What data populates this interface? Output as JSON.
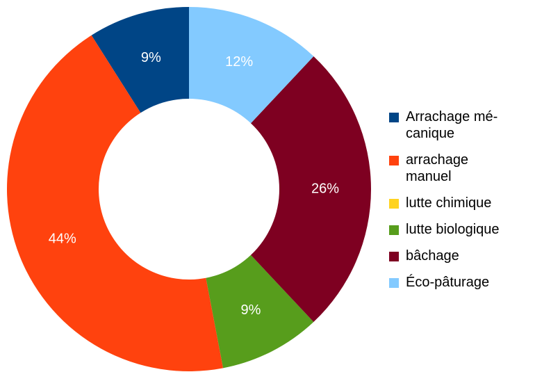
{
  "chart_data": {
    "type": "donut",
    "categories": [
      "Arrachage mé­canique",
      "arrachage manuel",
      "lutte chimique",
      "lutte biologique",
      "bâchage",
      "Éco-pâturage"
    ],
    "values": [
      9,
      44,
      0,
      9,
      26,
      12
    ],
    "value_labels": [
      "9%",
      "44%",
      null,
      "9%",
      "26%",
      "12%"
    ],
    "colors": [
      "#004586",
      "#ff420e",
      "#ffd320",
      "#579d1c",
      "#7e0021",
      "#83caff"
    ],
    "direction": "counterclockwise",
    "legend": "right"
  }
}
